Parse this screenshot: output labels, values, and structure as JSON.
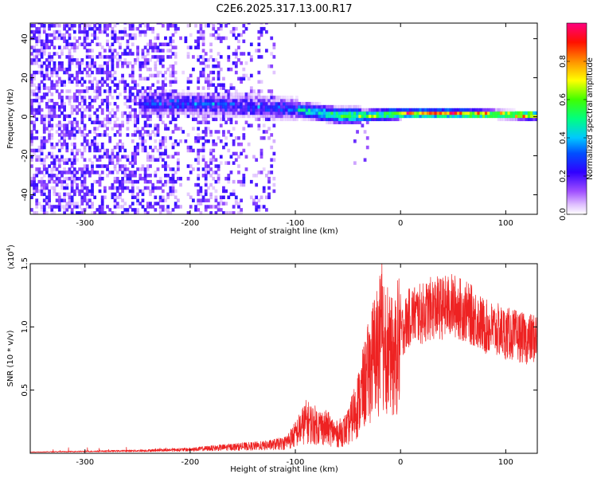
{
  "title": "C2E6.2025.317.13.00.R17",
  "chart_data": [
    {
      "type": "heatmap",
      "name": "spectrogram",
      "xlabel": "Height of straight line (km)",
      "ylabel": "Frequency (Hz)",
      "xlim": [
        -352,
        130
      ],
      "ylim": [
        -50,
        48
      ],
      "xticks": [
        -300,
        -200,
        -100,
        0,
        100
      ],
      "xtick_labels": [
        "-300",
        "-200",
        "-100",
        "0",
        "100"
      ],
      "yticks": [
        -40,
        -20,
        0,
        20,
        40
      ],
      "ytick_labels": [
        "-40",
        "-20",
        "0",
        "20",
        "40"
      ],
      "colorbar": {
        "label": "Normalized spectral amplitude",
        "range": [
          0,
          1
        ],
        "ticks": [
          0,
          0.2,
          0.4,
          0.6,
          0.8
        ],
        "tick_labels": [
          "0.0",
          "0.2",
          "0.4",
          "0.6",
          "0.8"
        ],
        "colors": [
          "#ffffff",
          "#c080ff",
          "#6000ff",
          "#0000ff",
          "#00c8ff",
          "#00ff40",
          "#ffff00",
          "#ff8000",
          "#ff0000",
          "#ff0080"
        ]
      },
      "features": {
        "noise_region_x": [
          -352,
          -120
        ],
        "band_center_freq_hz": [
          [
            -250,
            6
          ],
          [
            -200,
            6
          ],
          [
            -150,
            5
          ],
          [
            -100,
            3
          ],
          [
            -60,
            0
          ],
          [
            -30,
            0
          ],
          [
            0,
            1
          ],
          [
            50,
            1
          ],
          [
            130,
            0
          ]
        ],
        "peak_amplitude_region_x": [
          0,
          130
        ]
      }
    },
    {
      "type": "line",
      "name": "snr",
      "xlabel": "Height of straight line (km)",
      "ylabel": "SNR (10 * v/v)",
      "ymultiplier": "(x10",
      "ymultiplier_exp": "4",
      "ymultiplier_close": ")",
      "xlim": [
        -352,
        130
      ],
      "ylim": [
        0,
        1.5
      ],
      "xticks": [
        -300,
        -200,
        -100,
        0,
        100
      ],
      "xtick_labels": [
        "-300",
        "-200",
        "-100",
        "0",
        "100"
      ],
      "yticks": [
        0.5,
        1.0,
        1.5
      ],
      "ytick_labels": [
        "0.5",
        "1.0",
        "1.5"
      ],
      "color": "#ee2222",
      "series": [
        {
          "x": [
            -352,
            -300,
            -250,
            -200,
            -160,
            -130,
            -110,
            -100,
            -90,
            -80,
            -70,
            -60,
            -50,
            -40,
            -30,
            -25,
            -20,
            -15,
            -10,
            -5,
            0,
            10,
            20,
            30,
            40,
            50,
            60,
            70,
            80,
            90,
            100,
            110,
            120,
            130
          ],
          "y": [
            0.01,
            0.015,
            0.02,
            0.03,
            0.05,
            0.06,
            0.08,
            0.15,
            0.25,
            0.22,
            0.2,
            0.15,
            0.2,
            0.4,
            0.65,
            0.78,
            0.85,
            0.95,
            0.75,
            0.75,
            0.95,
            1.1,
            1.1,
            1.15,
            1.15,
            1.17,
            1.13,
            1.08,
            1.0,
            0.98,
            0.95,
            0.93,
            0.9,
            0.92
          ]
        }
      ]
    }
  ]
}
